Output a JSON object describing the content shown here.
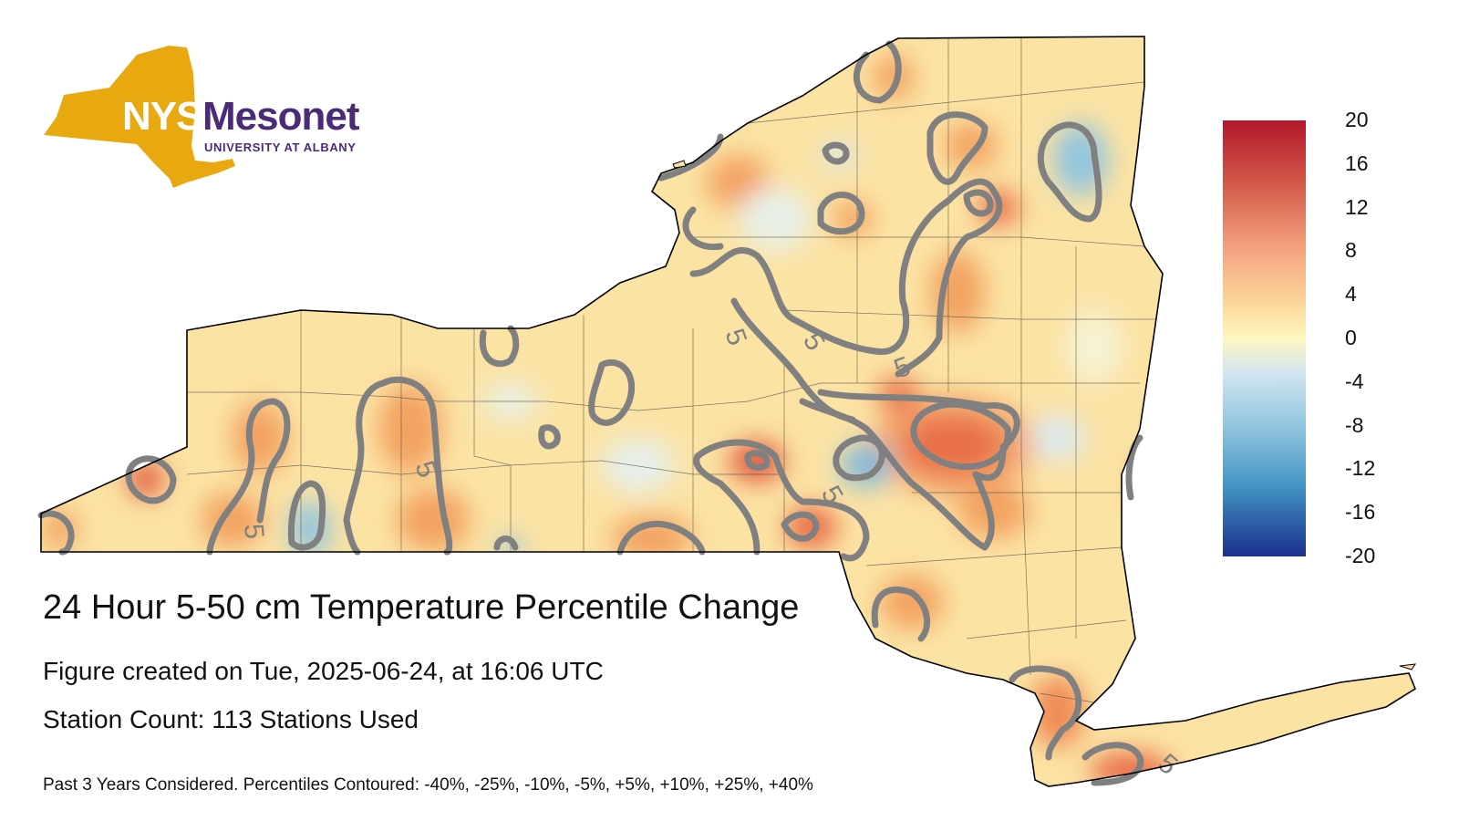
{
  "logo": {
    "name_part1": "NYS",
    "name_part2": "Mesonet",
    "subtitle": "UNIVERSITY AT ALBANY",
    "gold": "#e8a910",
    "purple": "#4b2a78"
  },
  "figure": {
    "title": "24 Hour 5-50 cm Temperature Percentile Change",
    "created": "Figure created on Tue, 2025-06-24, at 16:06 UTC",
    "station_count": "Station Count: 113 Stations Used",
    "note": "Past 3 Years Considered. Percentiles Contoured: -40%, -25%, -10%, -5%, +5%, +10%, +25%, +40%"
  },
  "colorbar": {
    "ticks": [
      "20",
      "16",
      "12",
      "8",
      "4",
      "0",
      "-4",
      "-8",
      "-12",
      "-16",
      "-20"
    ],
    "colors": [
      "#b2182b",
      "#d6604d",
      "#f4a582",
      "#fddbc7",
      "#fff6c0",
      "#d1e5f0",
      "#92c5de",
      "#4393c3",
      "#2166ac",
      "#1a2f8c"
    ]
  },
  "map": {
    "contour_label": "5",
    "land_color": "#fbe3a4",
    "contour_color": "#808080"
  }
}
